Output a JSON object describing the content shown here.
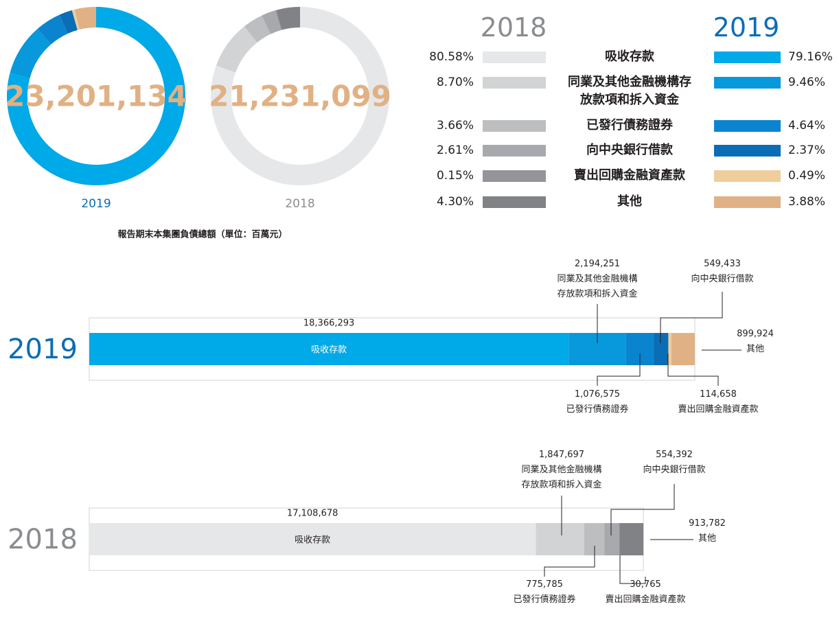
{
  "chart_data": [
    {
      "type": "pie",
      "subtitle": "報告期末本集團負債總額（單位：百萬元）",
      "categories": [
        "吸收存款",
        "同業及其他金融機構存放款項和拆入資金",
        "已發行債務證券",
        "向中央銀行借款",
        "賣出回購金融資產款",
        "其他"
      ],
      "series": [
        {
          "name": "2019",
          "total": {
            "value": 23201134,
            "label": "23,201,134"
          },
          "colors": [
            "#00a9e8",
            "#0898dc",
            "#0a84cf",
            "#0a6db5",
            "#f0cd9c",
            "#e0b184"
          ],
          "values": [
            79.16,
            9.46,
            4.64,
            2.37,
            0.49,
            3.88
          ],
          "value_labels": [
            "79.16%",
            "9.46%",
            "4.64%",
            "2.37%",
            "0.49%",
            "3.88%"
          ]
        },
        {
          "name": "2018",
          "total": {
            "value": 21231099,
            "label": "21,231,099"
          },
          "colors": [
            "#e6e7e8",
            "#d1d3d4",
            "#bcbec0",
            "#a7a9ac",
            "#939598",
            "#808285"
          ],
          "values": [
            80.58,
            8.7,
            3.66,
            2.61,
            0.15,
            4.3
          ],
          "value_labels": [
            "80.58%",
            "8.70%",
            "3.66%",
            "2.61%",
            "0.15%",
            "4.30%"
          ]
        }
      ]
    },
    {
      "type": "bar",
      "orientation": "horizontal",
      "stacked": true,
      "categories": [
        "吸收存款",
        "同業及其他金融機構存放款項和拆入資金",
        "已發行債務證券",
        "向中央銀行借款",
        "賣出回購金融資產款",
        "其他"
      ],
      "series": [
        {
          "name": "2019",
          "colors": [
            "#00a9e8",
            "#0898dc",
            "#0a84cf",
            "#0a6db5",
            "#f0cd9c",
            "#e0b184"
          ],
          "values": [
            18366293,
            2194251,
            1076575,
            549433,
            114658,
            899924
          ],
          "value_labels": [
            "18,366,293",
            "2,194,251",
            "1,076,575",
            "549,433",
            "114,658",
            "899,924"
          ]
        },
        {
          "name": "2018",
          "colors": [
            "#e6e7e8",
            "#d1d3d4",
            "#bcbec0",
            "#a7a9ac",
            "#939598",
            "#808285"
          ],
          "values": [
            17108678,
            1847697,
            775785,
            554392,
            30765,
            913782
          ],
          "value_labels": [
            "17,108,678",
            "1,847,697",
            "775,785",
            "554,392",
            "30,765",
            "913,782"
          ]
        }
      ]
    }
  ]
}
